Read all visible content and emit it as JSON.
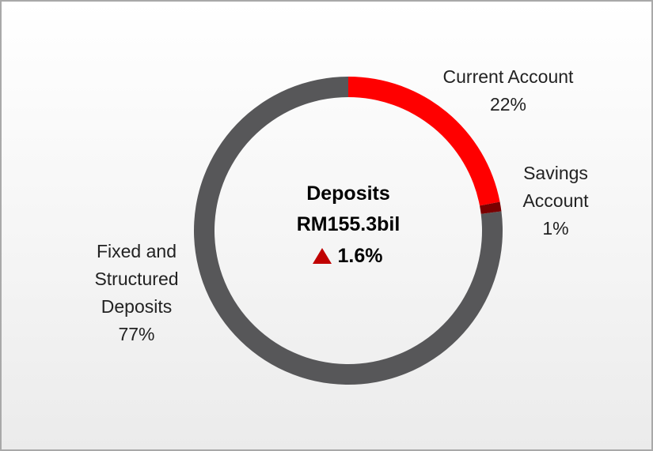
{
  "chart_data": {
    "type": "donut",
    "categories": [
      "Current Account",
      "Savings Account",
      "Fixed and Structured Deposits"
    ],
    "values": [
      22,
      1,
      77
    ],
    "value_labels": [
      "22%",
      "1%",
      "77%"
    ],
    "colors": [
      "#ff0000",
      "#7a0000",
      "#575759"
    ],
    "center_title": "Deposits",
    "center_value": "RM155.3bil",
    "center_change": "1.6%"
  }
}
